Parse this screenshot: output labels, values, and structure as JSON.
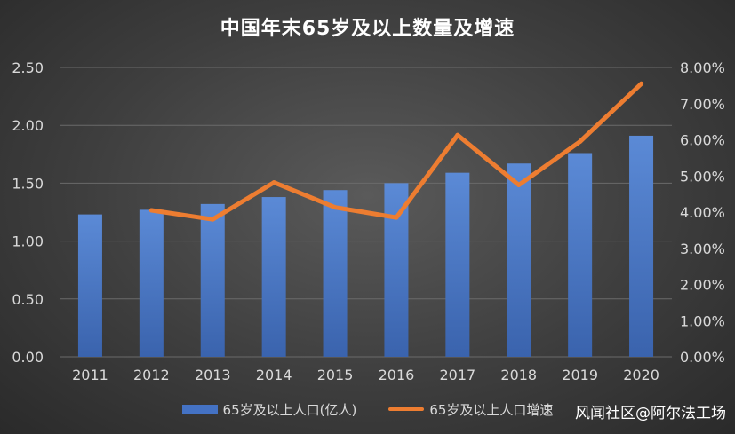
{
  "chart_data": {
    "type": "bar",
    "title": "中国年末65岁及以上数量及增速",
    "categories": [
      "2011",
      "2012",
      "2013",
      "2014",
      "2015",
      "2016",
      "2017",
      "2018",
      "2019",
      "2020"
    ],
    "series": [
      {
        "name": "65岁及以上人口(亿人)",
        "type": "bar",
        "axis": "left",
        "values": [
          1.23,
          1.27,
          1.32,
          1.38,
          1.44,
          1.5,
          1.59,
          1.67,
          1.76,
          1.91
        ]
      },
      {
        "name": "65岁及以上人口增速",
        "type": "line",
        "axis": "right",
        "values": [
          null,
          0.0405,
          0.038,
          0.0482,
          0.0413,
          0.0385,
          0.0613,
          0.0475,
          0.0595,
          0.0755
        ]
      }
    ],
    "y_left": {
      "ylim": [
        0,
        2.5
      ],
      "ticks": [
        "0.00",
        "0.50",
        "1.00",
        "1.50",
        "2.00",
        "2.50"
      ]
    },
    "y_right": {
      "ylim": [
        0,
        0.08
      ],
      "ticks": [
        "0.00%",
        "1.00%",
        "2.00%",
        "3.00%",
        "4.00%",
        "5.00%",
        "6.00%",
        "7.00%",
        "8.00%"
      ]
    },
    "grid": true,
    "legend_position": "bottom",
    "colors": {
      "bar": "#4472c4",
      "line": "#ed7d31"
    }
  },
  "watermark": "风闻社区@阿尔法工场"
}
